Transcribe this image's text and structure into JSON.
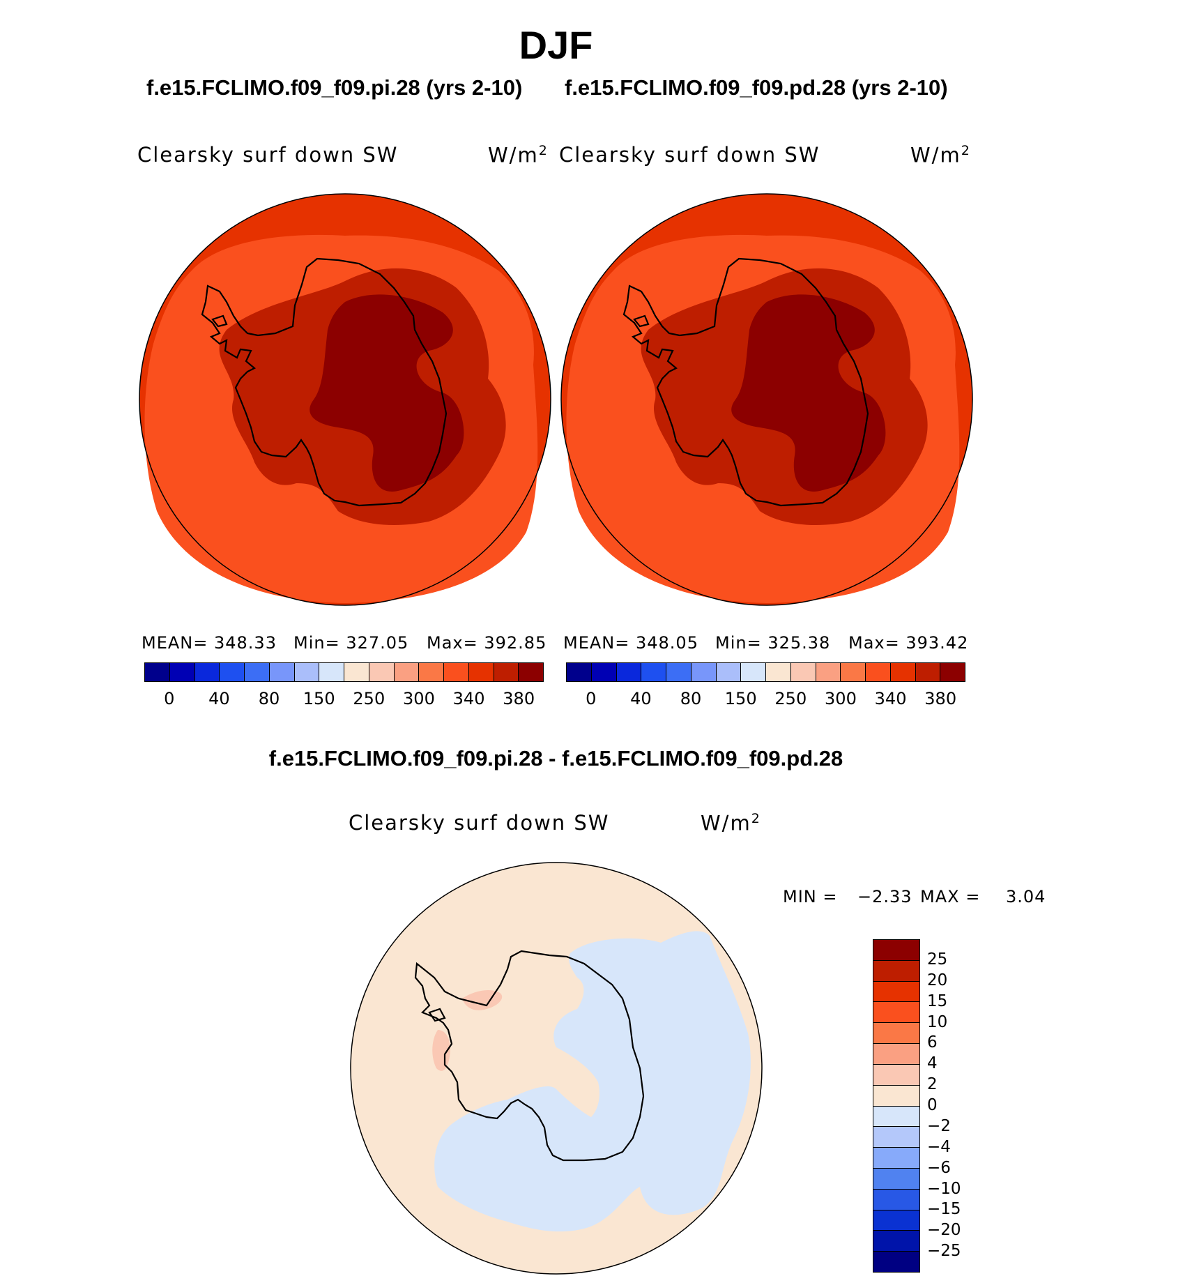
{
  "season": "DJF",
  "case_1": "f.e15.FCLIMO.f09_f09.pi.28 (yrs 2-10)",
  "case_2": "f.e15.FCLIMO.f09_f09.pd.28 (yrs 2-10)",
  "diff_title": "f.e15.FCLIMO.f09_f09.pi.28 - f.e15.FCLIMO.f09_f09.pd.28",
  "variable": "Clearsky surf down SW",
  "units_base": "W/m",
  "units_exp": "2",
  "panel_1": {
    "mean": "MEAN= 348.33",
    "min": "Min= 327.05",
    "max": "Max= 392.85"
  },
  "panel_2": {
    "mean": "MEAN= 348.05",
    "min": "Min= 325.38",
    "max": "Max= 393.42"
  },
  "diff_stats": {
    "min_label": "MIN =",
    "min_value": "−2.33",
    "max_label": "MAX =",
    "max_value": "3.04"
  },
  "abs_colorbar": {
    "colors": [
      "#00008c",
      "#0000b4",
      "#0a28dc",
      "#1e50f0",
      "#3c6ef5",
      "#7896fa",
      "#aabefa",
      "#d7e6fa",
      "#fae6d2",
      "#fac8b4",
      "#faa082",
      "#fa7846",
      "#fa501e",
      "#e63200",
      "#be1e00",
      "#8c0000"
    ],
    "tick_labels": [
      "0",
      "40",
      "80",
      "150",
      "250",
      "300",
      "340",
      "380"
    ]
  },
  "diff_colorbar": {
    "colors": [
      "#8c0000",
      "#be1e00",
      "#e63200",
      "#fa501e",
      "#fa7846",
      "#faa082",
      "#fac8b4",
      "#fae6d2",
      "#d7e6fa",
      "#b4c8fa",
      "#87aafa",
      "#5082f0",
      "#2858e6",
      "#0a32d2",
      "#0014aa",
      "#000082"
    ],
    "tick_labels": [
      "25",
      "20",
      "15",
      "10",
      "6",
      "4",
      "2",
      "0",
      "−2",
      "−4",
      "−6",
      "−10",
      "−15",
      "−20",
      "−25"
    ]
  },
  "map_colors": {
    "outer": "#e63200",
    "ocean": "#fa501e",
    "inner": "#be1e00",
    "plateau": "#8c0000",
    "diff_pos": "#fae6d2",
    "diff_pos_strong": "#fac8b4",
    "diff_neg": "#d7e6fa"
  }
}
